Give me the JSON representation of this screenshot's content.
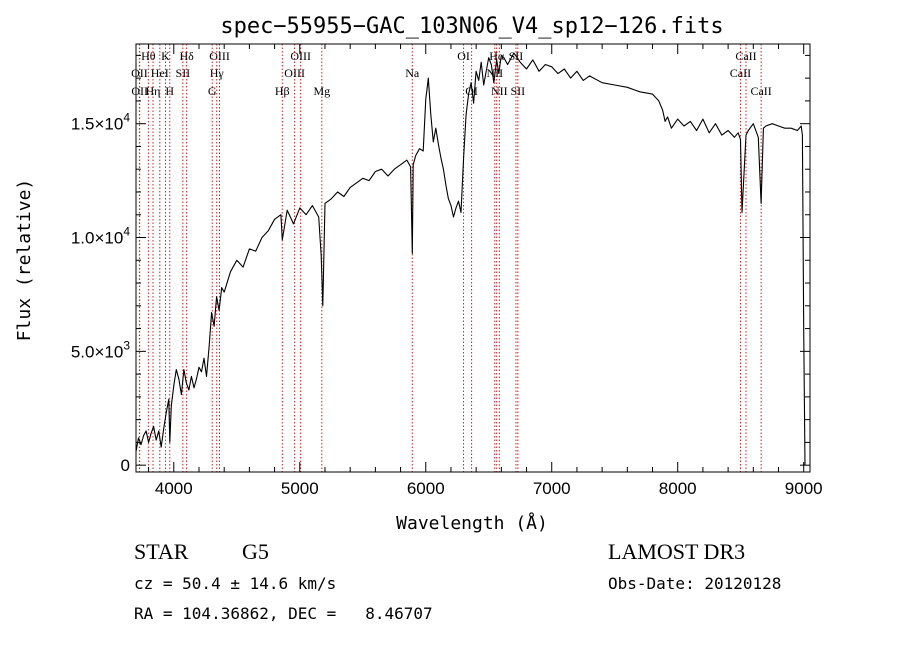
{
  "chart_data": {
    "type": "line",
    "title": "spec−55955−GAC_103N06_V4_sp12−126.fits",
    "xlabel": "Wavelength (Å)",
    "ylabel": "Flux (relative)",
    "xlim": [
      3700,
      9050
    ],
    "ylim": [
      -300,
      18500
    ],
    "xticks": [
      {
        "value": 4000,
        "label": "4000"
      },
      {
        "value": 5000,
        "label": "5000"
      },
      {
        "value": 6000,
        "label": "6000"
      },
      {
        "value": 7000,
        "label": "7000"
      },
      {
        "value": 8000,
        "label": "8000"
      },
      {
        "value": 9000,
        "label": "9000"
      }
    ],
    "yticks": [
      {
        "value": 0,
        "mant": "0",
        "exp": ""
      },
      {
        "value": 5000,
        "mant": "5.0×10",
        "exp": "3"
      },
      {
        "value": 10000,
        "mant": "1.0×10",
        "exp": "4"
      },
      {
        "value": 15000,
        "mant": "1.5×10",
        "exp": "4"
      }
    ],
    "series": [
      {
        "name": "spectrum",
        "x": [
          3700,
          3720,
          3740,
          3760,
          3780,
          3800,
          3820,
          3840,
          3860,
          3880,
          3900,
          3920,
          3940,
          3960,
          3968,
          3980,
          4000,
          4020,
          4040,
          4060,
          4080,
          4100,
          4120,
          4140,
          4160,
          4180,
          4200,
          4220,
          4240,
          4260,
          4280,
          4300,
          4320,
          4340,
          4360,
          4380,
          4400,
          4450,
          4500,
          4550,
          4600,
          4650,
          4700,
          4750,
          4800,
          4850,
          4861,
          4900,
          4950,
          5000,
          5050,
          5100,
          5150,
          5170,
          5183,
          5200,
          5250,
          5300,
          5350,
          5400,
          5450,
          5500,
          5550,
          5600,
          5650,
          5700,
          5750,
          5800,
          5850,
          5880,
          5893,
          5900,
          5920,
          5950,
          5980,
          6000,
          6010,
          6020,
          6040,
          6060,
          6080,
          6100,
          6120,
          6140,
          6160,
          6180,
          6200,
          6220,
          6240,
          6260,
          6280,
          6300,
          6320,
          6340,
          6360,
          6380,
          6400,
          6420,
          6440,
          6460,
          6480,
          6500,
          6520,
          6540,
          6563,
          6580,
          6600,
          6620,
          6650,
          6700,
          6750,
          6800,
          6850,
          6900,
          6950,
          7000,
          7050,
          7100,
          7150,
          7200,
          7250,
          7300,
          7400,
          7500,
          7600,
          7700,
          7800,
          7850,
          7880,
          7900,
          7920,
          7950,
          8000,
          8050,
          8100,
          8150,
          8200,
          8250,
          8300,
          8350,
          8400,
          8450,
          8480,
          8498,
          8510,
          8542,
          8560,
          8600,
          8640,
          8662,
          8680,
          8700,
          8750,
          8800,
          8850,
          8900,
          8950,
          8980,
          8990,
          9000,
          9010
        ],
        "y": [
          600,
          1200,
          900,
          1300,
          1500,
          1000,
          1400,
          1700,
          1100,
          1500,
          800,
          1600,
          2300,
          2900,
          1000,
          2600,
          3500,
          4200,
          3800,
          3100,
          4200,
          3600,
          3300,
          3900,
          3400,
          3800,
          4300,
          4100,
          4700,
          3900,
          5200,
          6700,
          6100,
          7400,
          6800,
          7800,
          7600,
          8500,
          9000,
          8700,
          9500,
          9400,
          10000,
          10300,
          10800,
          11000,
          9900,
          11200,
          10600,
          11300,
          11000,
          11400,
          10900,
          9200,
          7000,
          11500,
          11700,
          12000,
          11800,
          12200,
          12400,
          12600,
          12500,
          12900,
          13000,
          12700,
          13000,
          13200,
          13400,
          13100,
          9300,
          13200,
          13600,
          13900,
          13800,
          16100,
          16500,
          17000,
          15400,
          14200,
          14800,
          14100,
          13500,
          13000,
          12300,
          11700,
          11400,
          10900,
          11300,
          11600,
          11100,
          13500,
          15400,
          16300,
          16800,
          15900,
          17300,
          16900,
          17700,
          16700,
          17300,
          17900,
          17600,
          16800,
          17800,
          17200,
          18000,
          17900,
          17600,
          18100,
          17700,
          17400,
          17800,
          17300,
          17600,
          17500,
          17200,
          17400,
          17000,
          17300,
          16900,
          17100,
          16800,
          16700,
          16600,
          16400,
          16300,
          16000,
          15600,
          15100,
          15300,
          14800,
          15200,
          14900,
          15100,
          14700,
          15200,
          14600,
          15000,
          14500,
          14700,
          14400,
          14600,
          14300,
          11100,
          14500,
          14700,
          15000,
          14400,
          11500,
          14800,
          14900,
          15000,
          14900,
          14800,
          14800,
          14700,
          14900,
          14500,
          6000,
          0
        ]
      }
    ],
    "spectral_lines": [
      {
        "name": "Hθ",
        "x": 3798,
        "row": 0
      },
      {
        "name": "OII",
        "x": 3727,
        "row": 1
      },
      {
        "name": "OII",
        "x": 3729,
        "row": 2
      },
      {
        "name": "Hη",
        "x": 3835,
        "row": 2
      },
      {
        "name": "HeI",
        "x": 3889,
        "row": 1
      },
      {
        "name": "K",
        "x": 3934,
        "row": 0
      },
      {
        "name": "H",
        "x": 3968,
        "row": 2
      },
      {
        "name": "SII",
        "x": 4072,
        "row": 1
      },
      {
        "name": "Hδ",
        "x": 4102,
        "row": 0
      },
      {
        "name": "OIII",
        "x": 4363,
        "row": 0
      },
      {
        "name": "Hγ",
        "x": 4341,
        "row": 1
      },
      {
        "name": "G",
        "x": 4305,
        "row": 2
      },
      {
        "name": "OIII",
        "x": 5007,
        "row": 0
      },
      {
        "name": "OIII",
        "x": 4959,
        "row": 1
      },
      {
        "name": "Hβ",
        "x": 4861,
        "row": 2
      },
      {
        "name": "Mg",
        "x": 5175,
        "row": 2
      },
      {
        "name": "Na",
        "x": 5893,
        "row": 1
      },
      {
        "name": "OI",
        "x": 6300,
        "row": 0
      },
      {
        "name": "OI",
        "x": 6364,
        "row": 2
      },
      {
        "name": "Hα",
        "x": 6563,
        "row": 0
      },
      {
        "name": "NII",
        "x": 6548,
        "row": 1
      },
      {
        "name": "NII",
        "x": 6584,
        "row": 2
      },
      {
        "name": "SII",
        "x": 6716,
        "row": 0
      },
      {
        "name": "SII",
        "x": 6731,
        "row": 2
      },
      {
        "name": "CaII",
        "x": 8542,
        "row": 0
      },
      {
        "name": "CaII",
        "x": 8498,
        "row": 1
      },
      {
        "name": "CaII",
        "x": 8662,
        "row": 2
      }
    ]
  },
  "info": {
    "object_class": "STAR",
    "subclass": "G5",
    "survey": "LAMOST DR3",
    "cz": "cz = 50.4 ± 14.6 km/s",
    "obs_date": "Obs-Date: 20120128",
    "coords": "RA = 104.36862, DEC =   8.46707"
  }
}
